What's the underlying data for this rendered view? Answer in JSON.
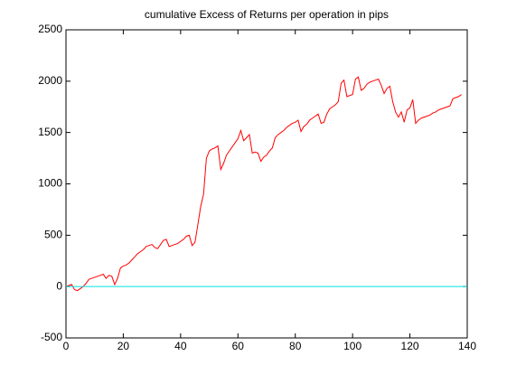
{
  "chart_data": {
    "type": "line",
    "title": "cumulative Excess of Returns per operation in pips",
    "series": [
      {
        "color": "#ff0000",
        "x": [
          0,
          1,
          2,
          3,
          4,
          5,
          6,
          7,
          8,
          9,
          10,
          11,
          12,
          13,
          14,
          15,
          16,
          17,
          18,
          19,
          20,
          21,
          22,
          23,
          24,
          25,
          26,
          27,
          28,
          29,
          30,
          31,
          32,
          33,
          34,
          35,
          36,
          37,
          38,
          39,
          40,
          41,
          42,
          43,
          44,
          45,
          46,
          47,
          48,
          49,
          50,
          51,
          52,
          53,
          54,
          55,
          56,
          57,
          58,
          59,
          60,
          61,
          62,
          63,
          64,
          65,
          66,
          67,
          68,
          69,
          70,
          71,
          72,
          73,
          74,
          75,
          76,
          77,
          78,
          79,
          80,
          81,
          82,
          83,
          84,
          85,
          86,
          87,
          88,
          89,
          90,
          91,
          92,
          93,
          94,
          95,
          96,
          97,
          98,
          99,
          100,
          101,
          102,
          103,
          104,
          105,
          106,
          107,
          108,
          109,
          110,
          111,
          112,
          113,
          114,
          115,
          116,
          117,
          118,
          119,
          120,
          121,
          122,
          123,
          124,
          125,
          126,
          127,
          128,
          129,
          130,
          131,
          132,
          133,
          134,
          135,
          136,
          137,
          138
        ],
        "values": [
          0,
          10,
          20,
          -30,
          -40,
          -20,
          0,
          30,
          70,
          80,
          90,
          100,
          110,
          120,
          80,
          110,
          100,
          20,
          80,
          180,
          200,
          210,
          230,
          260,
          290,
          320,
          340,
          360,
          390,
          400,
          410,
          380,
          370,
          410,
          450,
          460,
          390,
          400,
          410,
          420,
          440,
          460,
          490,
          500,
          400,
          430,
          600,
          780,
          900,
          1250,
          1320,
          1340,
          1350,
          1370,
          1140,
          1200,
          1280,
          1320,
          1360,
          1400,
          1440,
          1520,
          1420,
          1450,
          1480,
          1300,
          1310,
          1300,
          1220,
          1260,
          1280,
          1320,
          1350,
          1450,
          1480,
          1500,
          1520,
          1550,
          1570,
          1590,
          1600,
          1620,
          1510,
          1560,
          1580,
          1620,
          1640,
          1660,
          1680,
          1590,
          1600,
          1680,
          1730,
          1750,
          1770,
          1800,
          1980,
          2010,
          1850,
          1860,
          1870,
          2020,
          2040,
          1910,
          1930,
          1970,
          1990,
          2000,
          2010,
          2020,
          1960,
          1880,
          1930,
          1950,
          1800,
          1700,
          1650,
          1700,
          1600,
          1720,
          1740,
          1820,
          1590,
          1620,
          1640,
          1650,
          1660,
          1670,
          1690,
          1700,
          1720,
          1730,
          1740,
          1750,
          1760,
          1830,
          1840,
          1850,
          1870
        ]
      },
      {
        "color": "#00e0e0",
        "x": [
          0,
          140
        ],
        "values": [
          0,
          0
        ]
      }
    ],
    "xlim": [
      0,
      140
    ],
    "xticks": [
      0,
      20,
      40,
      60,
      80,
      100,
      120,
      140
    ],
    "ylim": [
      -500,
      2500
    ],
    "yticks": [
      -500,
      0,
      500,
      1000,
      1500,
      2000,
      2500
    ]
  }
}
